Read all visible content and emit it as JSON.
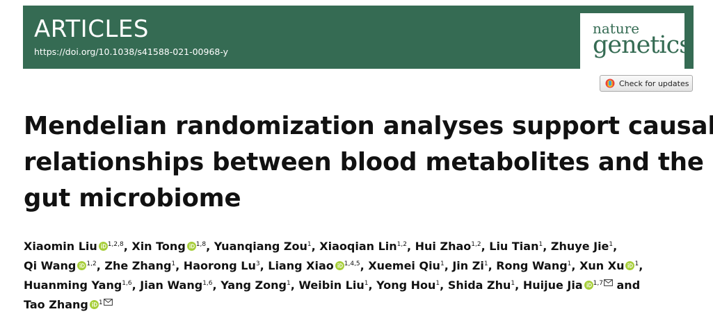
{
  "header": {
    "section": "ARTICLES",
    "doi": "https://doi.org/10.1038/s41588-021-00968-y",
    "journal_top": "nature",
    "journal_bottom": "genetics"
  },
  "check_updates_label": "Check for updates",
  "title_lines": [
    "Mendelian randomization analyses support causal",
    "relationships between blood metabolites and the",
    "gut microbiome"
  ],
  "authors": [
    [
      {
        "name": "Xiaomin Liu",
        "orcid": true,
        "aff": "1,2,8",
        "sep": ", "
      },
      {
        "name": "Xin Tong",
        "orcid": true,
        "aff": "1,8",
        "sep": ", "
      },
      {
        "name": "Yuanqiang Zou",
        "orcid": false,
        "aff": "1",
        "sep": ", "
      },
      {
        "name": "Xiaoqian Lin",
        "orcid": false,
        "aff": "1,2",
        "sep": ", "
      },
      {
        "name": "Hui Zhao",
        "orcid": false,
        "aff": "1,2",
        "sep": ", "
      },
      {
        "name": "Liu Tian",
        "orcid": false,
        "aff": "1",
        "sep": ", "
      },
      {
        "name": "Zhuye Jie",
        "orcid": false,
        "aff": "1",
        "sep": ","
      }
    ],
    [
      {
        "name": "Qi Wang",
        "orcid": true,
        "aff": "1,2",
        "sep": ", "
      },
      {
        "name": "Zhe Zhang",
        "orcid": false,
        "aff": "1",
        "sep": ", "
      },
      {
        "name": "Haorong Lu",
        "orcid": false,
        "aff": "3",
        "sep": ", "
      },
      {
        "name": "Liang Xiao",
        "orcid": true,
        "aff": "1,4,5",
        "sep": ", "
      },
      {
        "name": "Xuemei Qiu",
        "orcid": false,
        "aff": "1",
        "sep": ", "
      },
      {
        "name": "Jin Zi",
        "orcid": false,
        "aff": "1",
        "sep": ", "
      },
      {
        "name": "Rong Wang",
        "orcid": false,
        "aff": "1",
        "sep": ", "
      },
      {
        "name": "Xun Xu",
        "orcid": true,
        "aff": "1",
        "sep": ","
      }
    ],
    [
      {
        "name": "Huanming Yang",
        "orcid": false,
        "aff": "1,6",
        "sep": ", "
      },
      {
        "name": "Jian Wang",
        "orcid": false,
        "aff": "1,6",
        "sep": ", "
      },
      {
        "name": "Yang Zong",
        "orcid": false,
        "aff": "1",
        "sep": ", "
      },
      {
        "name": "Weibin Liu",
        "orcid": false,
        "aff": "1",
        "sep": ", "
      },
      {
        "name": "Yong Hou",
        "orcid": false,
        "aff": "1",
        "sep": ", "
      },
      {
        "name": "Shida Zhu",
        "orcid": false,
        "aff": "1",
        "sep": ", "
      },
      {
        "name": "Huijue Jia",
        "orcid": true,
        "aff": "1,7",
        "mail": true,
        "sep": " and"
      }
    ],
    [
      {
        "name": "Tao Zhang",
        "orcid": true,
        "aff": "1",
        "mail": true,
        "sep": ""
      }
    ]
  ]
}
